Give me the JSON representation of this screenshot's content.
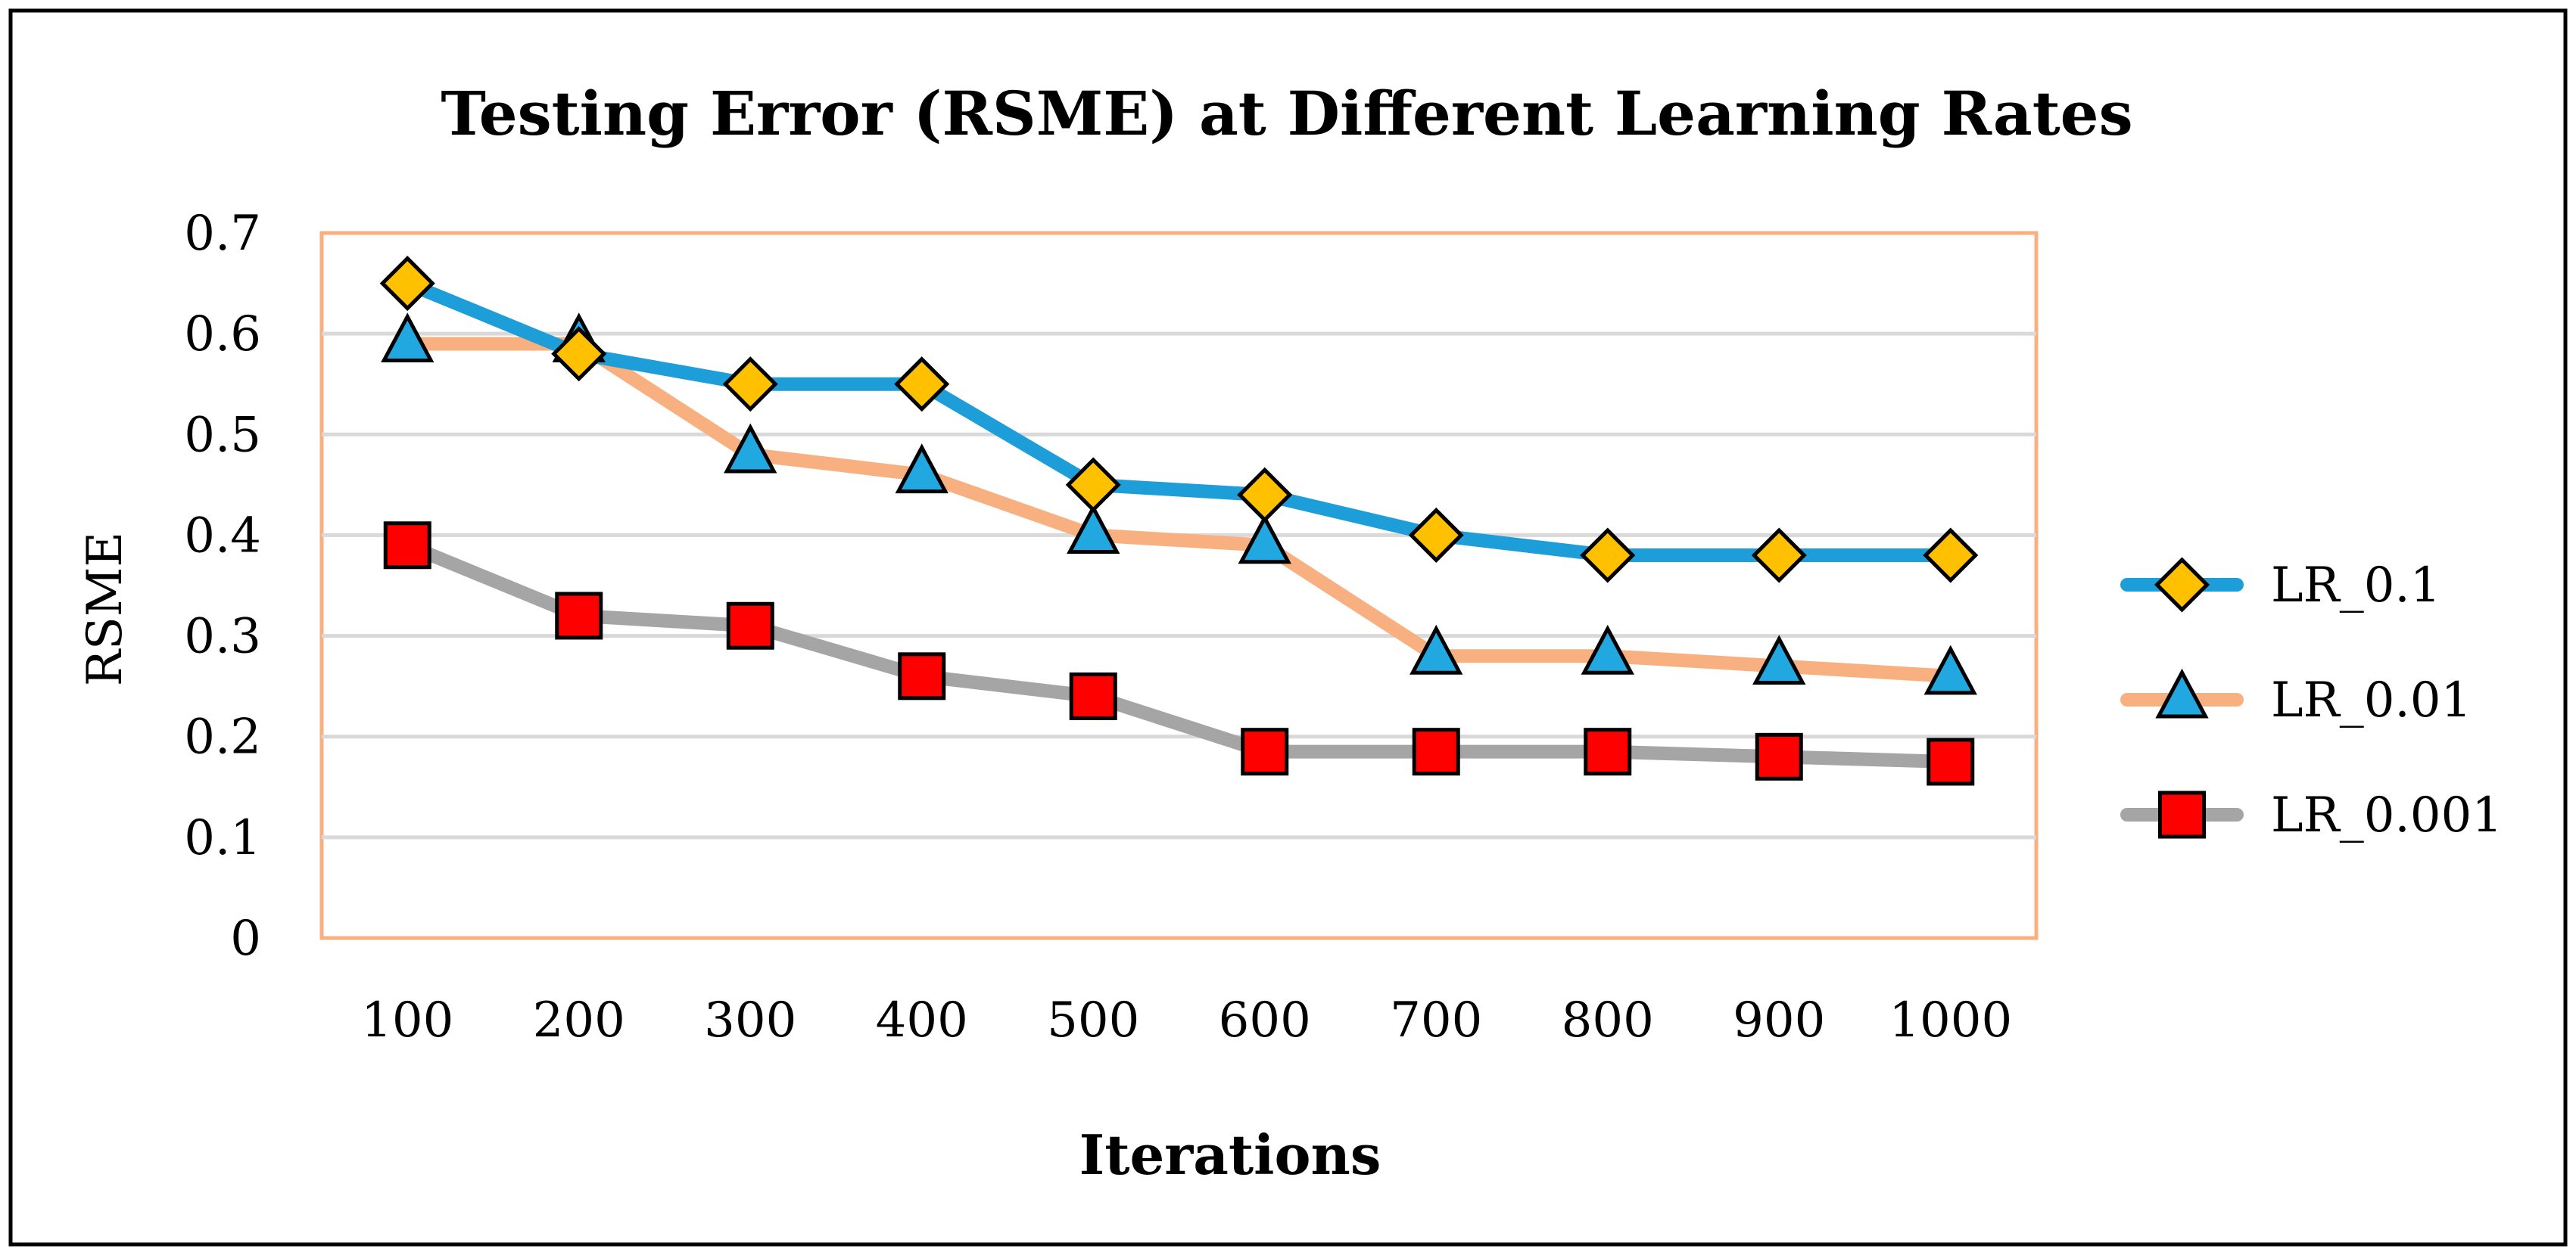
{
  "chart_data": {
    "type": "line",
    "title": "Testing Error (RSME) at Different Learning Rates",
    "xlabel": "Iterations",
    "ylabel": "RSME",
    "categories": [
      "100",
      "200",
      "300",
      "400",
      "500",
      "600",
      "700",
      "800",
      "900",
      "1000"
    ],
    "ylim": [
      0,
      0.7
    ],
    "yticks": [
      "0",
      "0.1",
      "0.2",
      "0.3",
      "0.4",
      "0.5",
      "0.6",
      "0.7"
    ],
    "grid": true,
    "legend_position": "right",
    "series": [
      {
        "name": "LR_0.1",
        "values": [
          0.65,
          0.58,
          0.55,
          0.55,
          0.45,
          0.44,
          0.4,
          0.38,
          0.38,
          0.38
        ],
        "line_color": "#1E9ED8",
        "marker": "diamond",
        "marker_color": "#FFC000"
      },
      {
        "name": "LR_0.01",
        "values": [
          0.59,
          0.59,
          0.48,
          0.46,
          0.4,
          0.39,
          0.28,
          0.28,
          0.27,
          0.26
        ],
        "line_color": "#F8B081",
        "marker": "triangle",
        "marker_color": "#21A8E0"
      },
      {
        "name": "LR_0.001",
        "values": [
          0.39,
          0.32,
          0.31,
          0.26,
          0.24,
          0.185,
          0.185,
          0.185,
          0.18,
          0.175
        ],
        "line_color": "#A5A5A5",
        "marker": "square",
        "marker_color": "#FF0000"
      }
    ],
    "plot_border_color": "#F8B081",
    "grid_color": "#D9D9D9"
  }
}
